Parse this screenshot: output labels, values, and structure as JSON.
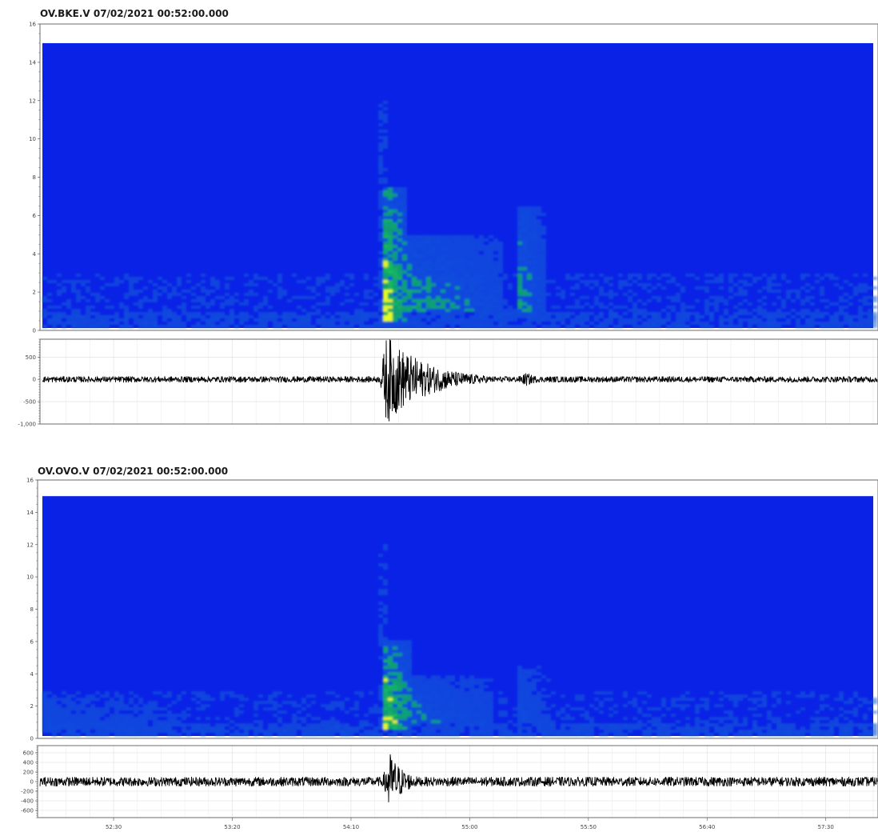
{
  "colors": {
    "spectrogram_background": "#0a22e6",
    "spectrogram_low": "#1560d8",
    "spectrogram_mid": "#14c850",
    "spectrogram_high": "#e8ff1e",
    "trace": "#000000",
    "grid": "#dedede"
  },
  "chart_data": [
    {
      "type": "heatmap",
      "title": "OV.BKE.V 07/02/2021 00:52:00.000",
      "ylim": [
        0,
        16
      ],
      "y_ticks": [
        "0",
        "2",
        "4",
        "6",
        "8",
        "10",
        "12",
        "14",
        "16"
      ],
      "data_extent": {
        "x": [
          "00:52:00",
          "00:57:50"
        ],
        "y": [
          0,
          15
        ]
      },
      "bright_regions": [
        {
          "start": "00:54:23",
          "end": "00:54:34",
          "freq_low": 0.5,
          "freq_high": 7.5,
          "intensity": 0.95
        },
        {
          "start": "00:54:34",
          "end": "00:55:15",
          "freq_low": 1.0,
          "freq_high": 5.0,
          "intensity": 0.55
        },
        {
          "start": "00:55:20",
          "end": "00:55:32",
          "freq_low": 1.0,
          "freq_high": 6.5,
          "intensity": 0.55
        }
      ]
    },
    {
      "type": "line",
      "ylim": [
        -1000,
        900
      ],
      "y_ticks": [
        "500",
        "0",
        "-500",
        "-1,000"
      ],
      "noise_amplitude": 65,
      "bursts": [
        {
          "start": "00:54:22",
          "peak": "00:54:25",
          "end": "00:55:15",
          "amplitude": 1000
        },
        {
          "start": "00:55:18",
          "peak": "00:55:24",
          "end": "00:55:40",
          "amplitude": 150
        }
      ]
    },
    {
      "type": "heatmap",
      "title": "OV.OVO.V 07/02/2021 00:52:00.000",
      "ylim": [
        0,
        16
      ],
      "y_ticks": [
        "0",
        "2",
        "4",
        "6",
        "8",
        "10",
        "12",
        "14",
        "16"
      ],
      "data_extent": {
        "x": [
          "00:52:00",
          "00:57:50"
        ],
        "y": [
          0,
          15
        ]
      },
      "bright_regions": [
        {
          "start": "00:54:23",
          "end": "00:54:35",
          "freq_low": 0.5,
          "freq_high": 6.0,
          "intensity": 0.95
        },
        {
          "start": "00:54:35",
          "end": "00:55:10",
          "freq_low": 1.0,
          "freq_high": 4.0,
          "intensity": 0.45
        },
        {
          "start": "00:55:20",
          "end": "00:55:35",
          "freq_low": 1.0,
          "freq_high": 4.5,
          "intensity": 0.35
        },
        {
          "start": "00:52:00",
          "end": "00:53:00",
          "freq_low": 0.5,
          "freq_high": 3.0,
          "intensity": 0.3
        }
      ]
    },
    {
      "type": "line",
      "ylim": [
        -750,
        750
      ],
      "y_ticks": [
        "600",
        "400",
        "200",
        "0",
        "-200",
        "-400",
        "-600"
      ],
      "noise_amplitude": 95,
      "bursts": [
        {
          "start": "00:54:23",
          "peak": "00:54:26",
          "end": "00:54:45",
          "amplitude": 650
        }
      ],
      "x_ticks": [
        "52:30",
        "53:20",
        "54:10",
        "55:00",
        "55:50",
        "56:40",
        "57:30"
      ],
      "x_tick_times": [
        "00:52:30",
        "00:53:20",
        "00:54:10",
        "00:55:00",
        "00:55:50",
        "00:56:40",
        "00:57:30"
      ]
    }
  ]
}
